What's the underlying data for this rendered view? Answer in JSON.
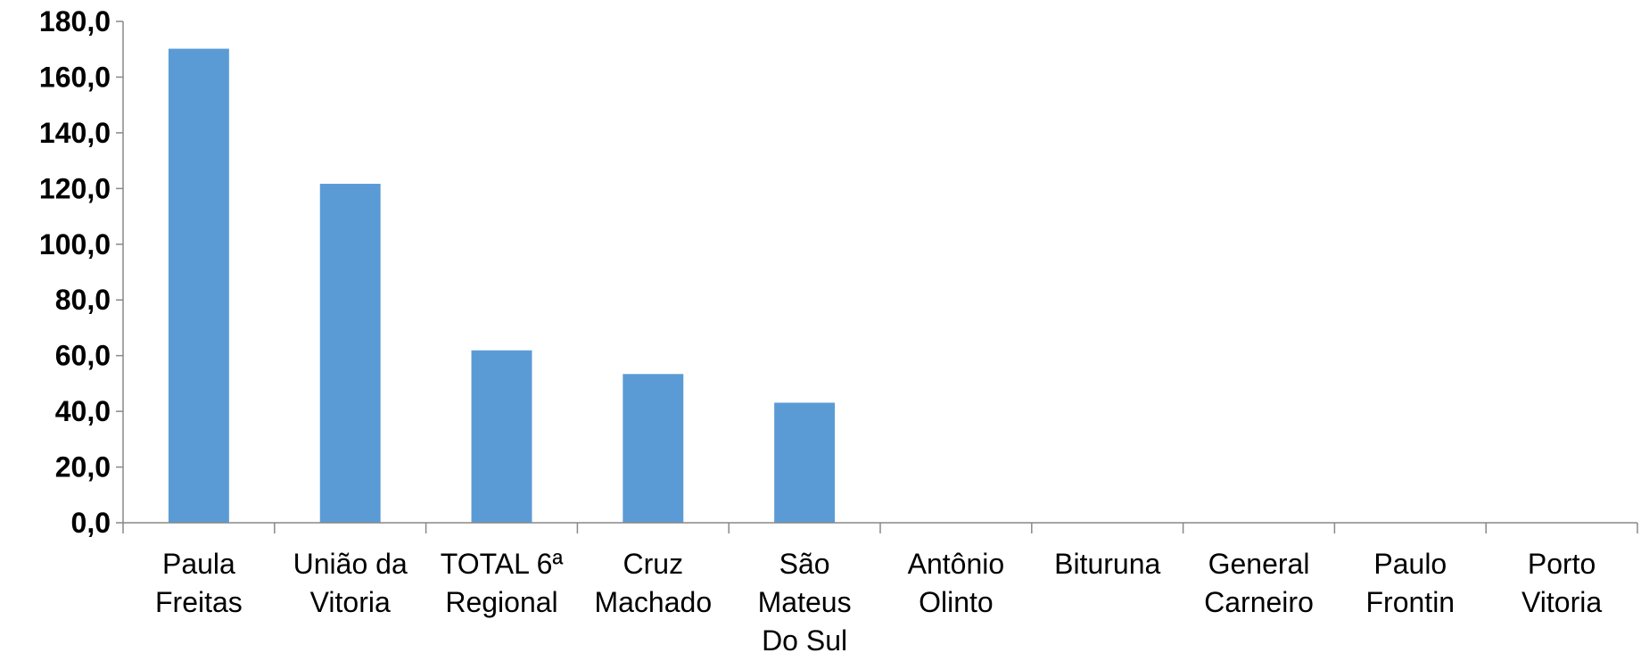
{
  "chart_data": {
    "type": "bar",
    "title": "",
    "xlabel": "",
    "ylabel": "",
    "ylim": [
      0,
      180
    ],
    "ytick_step": 20,
    "ytick_format": "comma-decimal-1",
    "grid": false,
    "legend": "none",
    "bar_color": "#5B9BD5",
    "categories": [
      [
        "Paula",
        "Freitas"
      ],
      [
        "União da",
        "Vitoria"
      ],
      [
        "TOTAL 6ª",
        "Regional"
      ],
      [
        "Cruz",
        "Machado"
      ],
      [
        "São",
        "Mateus",
        "Do Sul"
      ],
      [
        "Antônio",
        "Olinto"
      ],
      [
        "Bituruna"
      ],
      [
        "General",
        "Carneiro"
      ],
      [
        "Paulo",
        "Frontin"
      ],
      [
        "Porto",
        "Vitoria"
      ]
    ],
    "values": [
      170.2,
      121.7,
      61.9,
      53.4,
      43.1,
      0,
      0,
      0,
      0,
      0
    ]
  }
}
